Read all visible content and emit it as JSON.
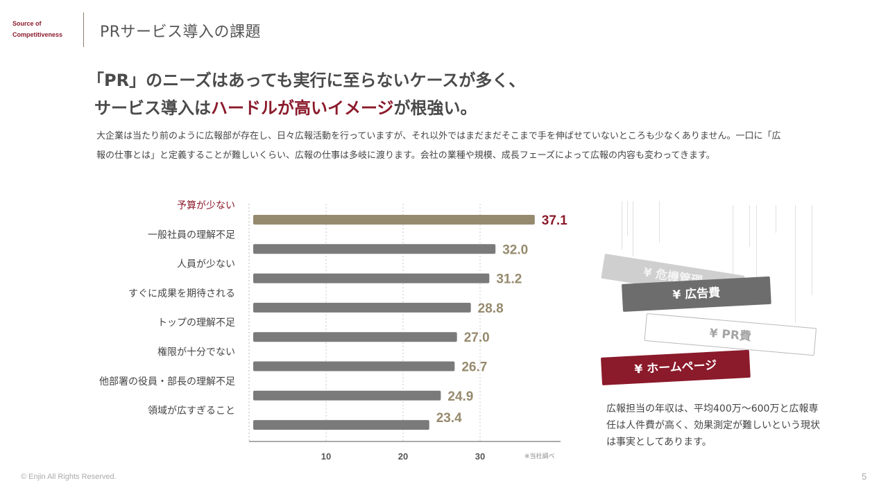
{
  "header": {
    "brand_line1": "Source of",
    "brand_line2": "Competitiveness",
    "page_title": "PRサービス導入の課題"
  },
  "headline": {
    "line1": "「PR」のニーズはあっても実行に至らないケースが多く、",
    "line2_a": "サービス導入は",
    "line2_accent": "ハードルが高いイメージ",
    "line2_b": "が根強い。"
  },
  "description": "大企業は当たり前のように広報部が存在し、日々広報活動を行っていますが、それ以外ではまだまだそこまで手を伸ばせていないところも少なくありません。一口に「広報の仕事とは」と定義することが難しいくらい、広報の仕事は多岐に渡ります。会社の業種や規模、成長フェーズによって広報の内容も変わってきます。",
  "chart_data": {
    "type": "bar",
    "orientation": "horizontal",
    "categories": [
      "予算が少ない",
      "一般社員の理解不足",
      "人員が少ない",
      "すぐに成果を期待される",
      "トップの理解不足",
      "権限が十分でない",
      "他部署の役員・部長の理解不足",
      "領域が広すぎること"
    ],
    "values": [
      37.1,
      32.0,
      31.2,
      28.8,
      27.0,
      26.7,
      24.9,
      23.4
    ],
    "value_labels": [
      "37.1",
      "32.0",
      "31.2",
      "28.8",
      "27.0",
      "26.7",
      "24.9",
      "23.4"
    ],
    "x_ticks": [
      "10",
      "20",
      "30"
    ],
    "xlim": [
      0,
      41
    ],
    "gridlines": "dotted vertical",
    "highlight_index": 0,
    "colors": {
      "highlight_bar": "#968a6e",
      "bar": "#7a7a7a",
      "highlight_value": "#8b1a2b",
      "value": "#968a6e",
      "highlight_label": "#8b1a2b",
      "label": "#444444"
    }
  },
  "chart_note": "※当社調べ",
  "tags": {
    "tag1": "¥ 危機管理",
    "tag2": "¥ 広告費",
    "tag3": "¥ PR費",
    "tag4": "¥ ホームページ"
  },
  "side_text": "広報担当の年収は、平均400万〜600万と広報専任は人件費が高く、効果測定が難しいという現状は事実としてあります。",
  "footer": {
    "copyright": "© Enjin All Rights Reserved.",
    "page_number": "5"
  },
  "colors": {
    "accent": "#8b1a2b",
    "brand_divider": "#8a7f6e"
  }
}
